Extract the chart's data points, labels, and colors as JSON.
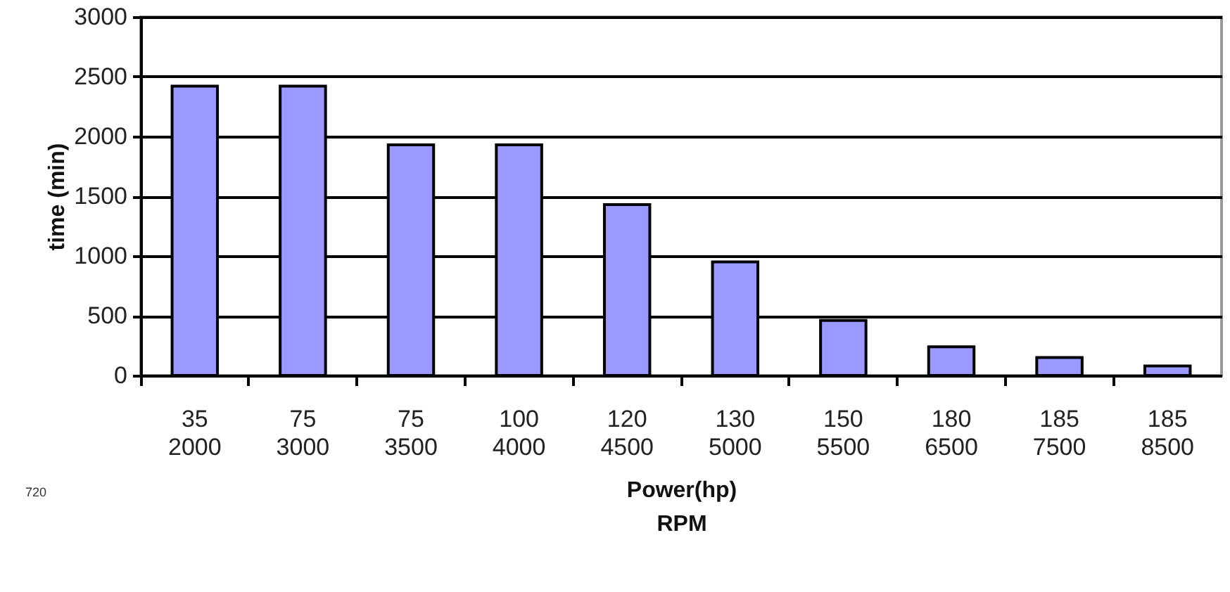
{
  "chart_data": {
    "type": "bar",
    "ylabel": "time (min)",
    "xlabel": "Power(hp)\nRPM",
    "categories": [
      "35\n2000",
      "75\n3000",
      "75\n3500",
      "100\n4000",
      "120\n4500",
      "130\n5000",
      "150\n5500",
      "180\n6500",
      "185\n7500",
      "185\n8500"
    ],
    "values": [
      2420,
      2420,
      1930,
      1930,
      1430,
      950,
      460,
      240,
      150,
      80
    ],
    "color": "#9999ff",
    "ylim": [
      0,
      3000
    ],
    "yticks": [
      0,
      500,
      1000,
      1500,
      2000,
      2500,
      3000
    ],
    "grid": "y",
    "annotations": [
      "720"
    ]
  }
}
